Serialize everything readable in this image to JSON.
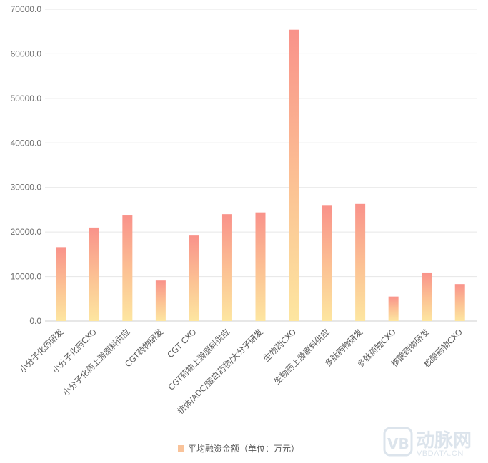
{
  "chart_data": {
    "type": "bar",
    "title": "",
    "xlabel": "",
    "ylabel": "",
    "ylim": [
      0,
      70000
    ],
    "yticks": [
      "0.0",
      "10000.0",
      "20000.0",
      "30000.0",
      "40000.0",
      "50000.0",
      "60000.0",
      "70000.0"
    ],
    "categories": [
      "小分子化药研发",
      "小分子化药CXO",
      "小分子化药上游原料供应",
      "CGT药物研发",
      "CGT CXO",
      "CGT药物上游原料供应",
      "抗体/ADC/蛋白药物/大分子研发",
      "生物药CXO",
      "生物药上游原料供应",
      "多肽药物研发",
      "多肽药物CXO",
      "核酸药物研发",
      "核酸药物CXO"
    ],
    "series": [
      {
        "name": "平均融资金额（单位：万元）",
        "values": [
          16600,
          21000,
          23700,
          9100,
          19200,
          24000,
          24400,
          65400,
          25900,
          26300,
          5500,
          10900,
          8300
        ]
      }
    ],
    "grid": true,
    "legend": "bottom",
    "colors": {
      "bar_top": "#f9928a",
      "bar_bottom": "#fde6a0",
      "legend_swatch": "#f9c39a",
      "grid": "#e6e6e6"
    }
  },
  "watermark": {
    "logo_text": "VB",
    "brand": "动脉网",
    "url": "VBDATA.CN"
  }
}
